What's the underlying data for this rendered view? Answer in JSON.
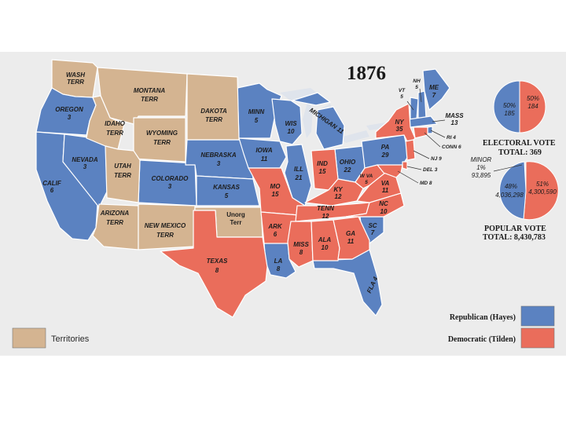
{
  "title": "1876",
  "colors": {
    "republican": "#5b82c1",
    "democratic": "#ea6d5b",
    "territory": "#d4b491",
    "background": "#ececec",
    "water": "#dfe4ec"
  },
  "states": [
    {
      "name": "WASH",
      "votes": "TERR",
      "party": "territory"
    },
    {
      "name": "MONTANA",
      "votes": "TERR",
      "party": "territory"
    },
    {
      "name": "DAKOTA",
      "votes": "TERR",
      "party": "territory"
    },
    {
      "name": "OREGON",
      "votes": "3",
      "party": "republican"
    },
    {
      "name": "IDAHO",
      "votes": "TERR",
      "party": "territory"
    },
    {
      "name": "WYOMING",
      "votes": "TERR",
      "party": "territory"
    },
    {
      "name": "NEVADA",
      "votes": "3",
      "party": "republican"
    },
    {
      "name": "UTAH",
      "votes": "TERR",
      "party": "territory"
    },
    {
      "name": "COLORADO",
      "votes": "3",
      "party": "republican"
    },
    {
      "name": "CALIF",
      "votes": "6",
      "party": "republican"
    },
    {
      "name": "ARIZONA",
      "votes": "TERR",
      "party": "territory"
    },
    {
      "name": "NEW MEXICO",
      "votes": "TERR",
      "party": "territory"
    },
    {
      "name": "MINN",
      "votes": "5",
      "party": "republican"
    },
    {
      "name": "NEBRASKA",
      "votes": "3",
      "party": "republican"
    },
    {
      "name": "KANSAS",
      "votes": "5",
      "party": "republican"
    },
    {
      "name": "Unorg",
      "votes": "Terr",
      "party": "territory"
    },
    {
      "name": "TEXAS",
      "votes": "8",
      "party": "democratic"
    },
    {
      "name": "IOWA",
      "votes": "11",
      "party": "republican"
    },
    {
      "name": "MO",
      "votes": "15",
      "party": "democratic"
    },
    {
      "name": "ARK",
      "votes": "6",
      "party": "democratic"
    },
    {
      "name": "LA",
      "votes": "8",
      "party": "republican"
    },
    {
      "name": "WIS",
      "votes": "10",
      "party": "republican"
    },
    {
      "name": "ILL",
      "votes": "21",
      "party": "republican"
    },
    {
      "name": "MICHIGAN",
      "votes": "11",
      "party": "republican"
    },
    {
      "name": "IND",
      "votes": "15",
      "party": "democratic"
    },
    {
      "name": "OHIO",
      "votes": "22",
      "party": "republican"
    },
    {
      "name": "KY",
      "votes": "12",
      "party": "democratic"
    },
    {
      "name": "TENN",
      "votes": "12",
      "party": "democratic"
    },
    {
      "name": "MISS",
      "votes": "8",
      "party": "democratic"
    },
    {
      "name": "ALA",
      "votes": "10",
      "party": "democratic"
    },
    {
      "name": "GA",
      "votes": "11",
      "party": "democratic"
    },
    {
      "name": "FLA",
      "votes": "4",
      "party": "republican"
    },
    {
      "name": "SC",
      "votes": "7",
      "party": "republican"
    },
    {
      "name": "NC",
      "votes": "10",
      "party": "democratic"
    },
    {
      "name": "VA",
      "votes": "11",
      "party": "democratic"
    },
    {
      "name": "W VA",
      "votes": "5",
      "party": "democratic"
    },
    {
      "name": "PA",
      "votes": "29",
      "party": "republican"
    },
    {
      "name": "NY",
      "votes": "35",
      "party": "democratic"
    },
    {
      "name": "VT",
      "votes": "5",
      "party": "republican"
    },
    {
      "name": "NH",
      "votes": "5",
      "party": "republican"
    },
    {
      "name": "ME",
      "votes": "7",
      "party": "republican"
    },
    {
      "name": "MASS",
      "votes": "13",
      "party": "republican"
    },
    {
      "name": "RI",
      "votes": "4",
      "party": "republican"
    },
    {
      "name": "CONN",
      "votes": "6",
      "party": "democratic"
    },
    {
      "name": "NJ",
      "votes": "9",
      "party": "democratic"
    },
    {
      "name": "DEL",
      "votes": "3",
      "party": "democratic"
    },
    {
      "name": "MD",
      "votes": "8",
      "party": "democratic"
    }
  ],
  "small_state_labels": {
    "ri": "RI 4",
    "conn": "CONN 6",
    "nj": "NJ 9",
    "del": "DEL 3",
    "md": "MD 8"
  },
  "electoral_pie": {
    "rep_pct": "50%",
    "rep_votes": "185",
    "dem_pct": "50%",
    "dem_votes": "184",
    "caption": "ELECTORAL VOTE",
    "total": "TOTAL: 369"
  },
  "popular_pie": {
    "minor_label": "MINOR",
    "minor_pct": "1%",
    "minor_votes": "93,895",
    "rep_pct": "48%",
    "rep_votes": "4,036,298",
    "dem_pct": "51%",
    "dem_votes": "4,300,590",
    "caption": "POPULAR VOTE",
    "total": "TOTAL: 8,430,783"
  },
  "legend": {
    "republican": "Republican (Hayes)",
    "democratic": "Democratic (Tilden)",
    "territories": "Territories"
  }
}
